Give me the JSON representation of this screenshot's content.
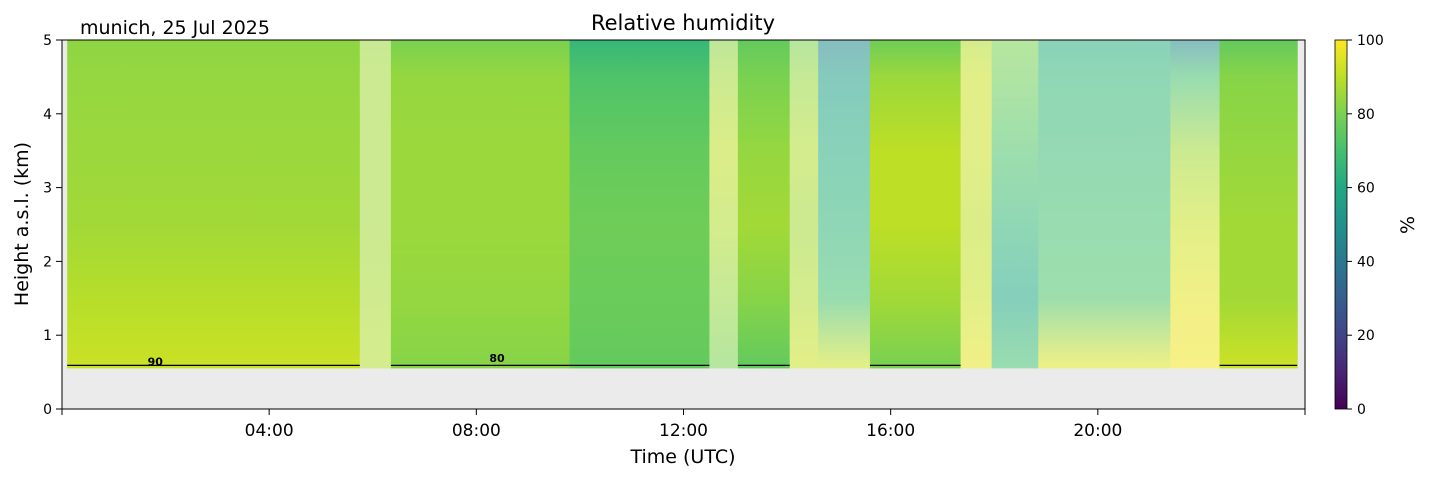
{
  "chart_data": {
    "type": "heatmap",
    "title": "Relative humidity",
    "subtitle": "munich, 25 Jul 2025",
    "xlabel": "Time (UTC)",
    "ylabel": "Height a.s.l. (km)",
    "xlim_hours": [
      0,
      24
    ],
    "ylim": [
      0,
      5
    ],
    "x_ticks": [
      {
        "hour": 4,
        "label": "04:00"
      },
      {
        "hour": 8,
        "label": "08:00"
      },
      {
        "hour": 12,
        "label": "12:00"
      },
      {
        "hour": 16,
        "label": "16:00"
      },
      {
        "hour": 20,
        "label": "20:00"
      }
    ],
    "y_ticks": [
      {
        "value": 0,
        "label": "0"
      },
      {
        "value": 1,
        "label": "1"
      },
      {
        "value": 2,
        "label": "2"
      },
      {
        "value": 3,
        "label": "3"
      },
      {
        "value": 4,
        "label": "4"
      },
      {
        "value": 5,
        "label": "5"
      }
    ],
    "colorbar": {
      "label": "%",
      "range": [
        0,
        100
      ],
      "colormap": "viridis",
      "ticks": [
        {
          "value": 0,
          "label": "0"
        },
        {
          "value": 20,
          "label": "20"
        },
        {
          "value": 40,
          "label": "40"
        },
        {
          "value": 60,
          "label": "60"
        },
        {
          "value": 80,
          "label": "80"
        },
        {
          "value": 100,
          "label": "100"
        }
      ]
    },
    "data_height_range_km": [
      0.55,
      5
    ],
    "no_data_color": "#ebebeb",
    "contour_levels": [
      80,
      90
    ],
    "contour_labels": [
      {
        "label": "90",
        "hour": 1.8,
        "height": 0.6
      },
      {
        "label": "80",
        "hour": 8.4,
        "height": 0.65
      }
    ],
    "time_segments": [
      {
        "start": 0.1,
        "end": 5.75,
        "rh_profile": [
          92,
          89,
          86,
          85,
          84,
          83
        ],
        "quality": "good"
      },
      {
        "start": 5.75,
        "end": 6.35,
        "rh_profile": [
          88,
          87,
          86,
          86,
          86,
          85
        ],
        "quality": "masked"
      },
      {
        "start": 6.35,
        "end": 9.8,
        "rh_profile": [
          82,
          84,
          85,
          85,
          84,
          80
        ],
        "quality": "good"
      },
      {
        "start": 9.8,
        "end": 12.5,
        "rh_profile": [
          76,
          77,
          78,
          76,
          72,
          66
        ],
        "quality": "good"
      },
      {
        "start": 12.5,
        "end": 13.05,
        "rh_profile": [
          80,
          84,
          88,
          90,
          86,
          82
        ],
        "quality": "masked"
      },
      {
        "start": 13.05,
        "end": 14.05,
        "rh_profile": [
          76,
          82,
          86,
          84,
          80,
          76
        ],
        "quality": "good"
      },
      {
        "start": 14.05,
        "end": 14.6,
        "rh_profile": [
          92,
          88,
          86,
          88,
          84,
          80
        ],
        "quality": "masked"
      },
      {
        "start": 14.6,
        "end": 15.6,
        "rh_profile": [
          92,
          70,
          65,
          62,
          56,
          46
        ],
        "quality": "masked"
      },
      {
        "start": 15.6,
        "end": 17.35,
        "rh_profile": [
          80,
          86,
          90,
          90,
          85,
          78
        ],
        "quality": "good"
      },
      {
        "start": 17.35,
        "end": 17.95,
        "rh_profile": [
          96,
          92,
          90,
          92,
          92,
          88
        ],
        "quality": "masked"
      },
      {
        "start": 17.95,
        "end": 18.85,
        "rh_profile": [
          70,
          60,
          66,
          72,
          78,
          80
        ],
        "quality": "masked"
      },
      {
        "start": 18.85,
        "end": 21.4,
        "rh_profile": [
          95,
          72,
          70,
          68,
          66,
          62
        ],
        "quality": "masked"
      },
      {
        "start": 21.4,
        "end": 22.35,
        "rh_profile": [
          98,
          96,
          92,
          86,
          70,
          46
        ],
        "quality": "masked"
      },
      {
        "start": 22.35,
        "end": 23.85,
        "rh_profile": [
          92,
          86,
          86,
          84,
          82,
          76
        ],
        "quality": "good"
      }
    ],
    "profile_heights_km": [
      0.6,
      1.5,
      2.5,
      3.5,
      4.5,
      5.0
    ],
    "grid": false,
    "legend": "colorbar-right"
  }
}
